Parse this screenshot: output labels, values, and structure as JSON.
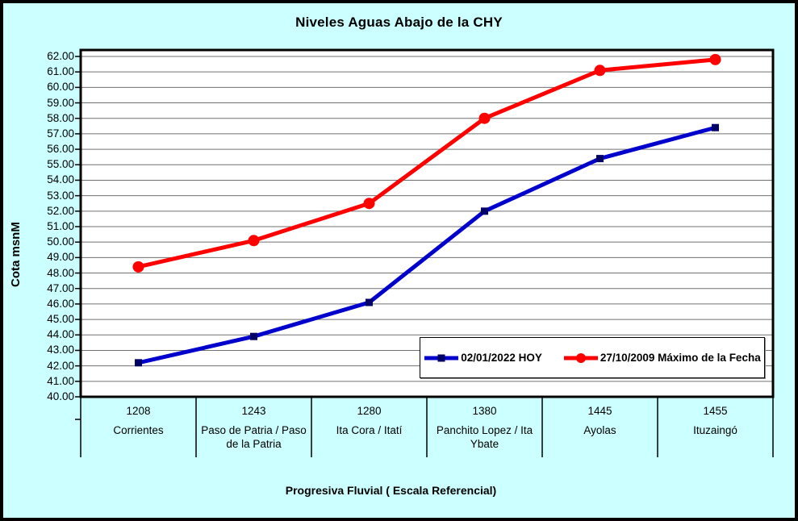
{
  "chart_data": {
    "type": "line",
    "title": "Niveles Aguas Abajo de la CHY",
    "ylabel": "Cota msnM",
    "xlabel": "Progresiva Fluvial ( Escala Referencial)",
    "ylim": [
      40,
      62
    ],
    "ytick_step": 1,
    "yticks": [
      "62.00",
      "61.00",
      "60.00",
      "59.00",
      "58.00",
      "57.00",
      "56.00",
      "55.00",
      "54.00",
      "53.00",
      "52.00",
      "51.00",
      "50.00",
      "49.00",
      "48.00",
      "47.00",
      "46.00",
      "45.00",
      "44.00",
      "43.00",
      "42.00",
      "41.00",
      "40.00"
    ],
    "grid": true,
    "legend_position": "inside-bottom-right",
    "categories": [
      {
        "km": "1208",
        "name": "Corrientes"
      },
      {
        "km": "1243",
        "name": "Paso de Patria / Paso de la Patria"
      },
      {
        "km": "1280",
        "name": "Ita Cora / Itatí"
      },
      {
        "km": "1380",
        "name": "Panchito Lopez / Ita Ybate"
      },
      {
        "km": "1445",
        "name": "Ayolas"
      },
      {
        "km": "1455",
        "name": "Ituzaingó"
      }
    ],
    "series": [
      {
        "name": "02/01/2022 HOY",
        "color": "#0000CC",
        "marker": "square",
        "marker_color": "#000066",
        "values": [
          42.2,
          43.9,
          46.1,
          52.0,
          55.4,
          57.4
        ]
      },
      {
        "name": "27/10/2009 Máximo de la Fecha",
        "color": "#FF0000",
        "marker": "circle",
        "marker_color": "#FF0000",
        "values": [
          48.4,
          50.1,
          52.5,
          58.0,
          61.1,
          61.8
        ]
      }
    ],
    "colors": {
      "background": "#CCFFFF",
      "plot_bg": "#FFFFFF",
      "gridline": "#707070",
      "border": "#000000"
    }
  }
}
